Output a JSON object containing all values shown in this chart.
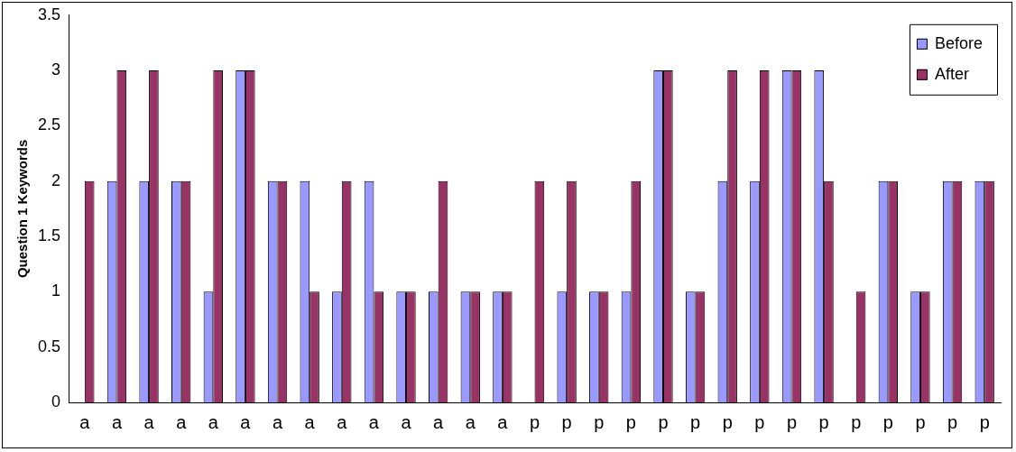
{
  "chart_data": {
    "type": "bar",
    "ylabel": "Question 1 Keywords",
    "categories": [
      "a",
      "a",
      "a",
      "a",
      "a",
      "a",
      "a",
      "a",
      "a",
      "a",
      "a",
      "a",
      "a",
      "a",
      "p",
      "p",
      "p",
      "p",
      "p",
      "p",
      "p",
      "p",
      "p",
      "p",
      "p",
      "p",
      "p",
      "p",
      "p"
    ],
    "series": [
      {
        "name": "Before",
        "color": "#9999ff",
        "values": [
          0,
          2,
          2,
          2,
          1,
          3,
          2,
          2,
          1,
          2,
          1,
          1,
          1,
          1,
          0,
          1,
          1,
          1,
          3,
          1,
          2,
          2,
          3,
          3,
          0,
          2,
          1,
          2,
          2
        ]
      },
      {
        "name": "After",
        "color": "#993366",
        "values": [
          2,
          3,
          3,
          2,
          3,
          3,
          2,
          1,
          2,
          1,
          1,
          2,
          1,
          1,
          2,
          2,
          1,
          2,
          3,
          1,
          3,
          3,
          3,
          2,
          1,
          2,
          1,
          2,
          2
        ]
      }
    ],
    "ylim": [
      0,
      3.5
    ],
    "yticks": [
      0,
      0.5,
      1,
      1.5,
      2,
      2.5,
      3,
      3.5
    ],
    "grid": false,
    "legend": "top right"
  }
}
